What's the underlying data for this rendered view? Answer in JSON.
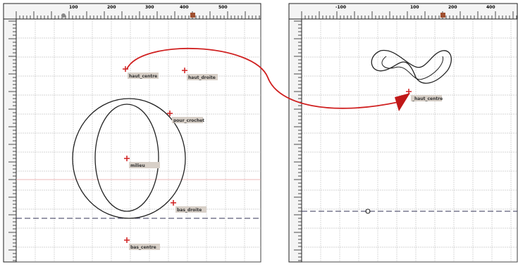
{
  "left_panel": {
    "ruler_labels": [
      "100",
      "200",
      "300",
      "400",
      "500"
    ],
    "anchors": [
      "haut_centre",
      "haut_droite",
      "pour_crochet",
      "milieu",
      "bas_droite",
      "bas_centre"
    ]
  },
  "right_panel": {
    "ruler_labels": [
      "-100",
      "100",
      "200",
      "400"
    ],
    "anchors": [
      "_haut_centre"
    ]
  }
}
